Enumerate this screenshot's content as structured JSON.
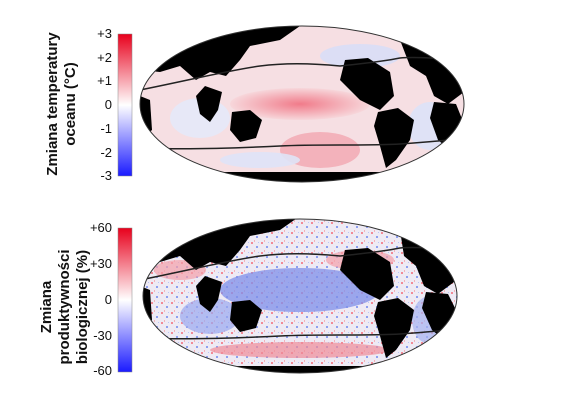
{
  "panels": [
    {
      "label_lines": [
        "Zmiana temperatury",
        "oceanu (°C)"
      ],
      "ticks": [
        "+3",
        "+2",
        "+1",
        "0",
        "-1",
        "-2",
        "-3"
      ],
      "colorbar": {
        "min": -3,
        "max": 3,
        "low_color": "#1a1aff",
        "mid_color": "#ffffff",
        "high_color": "#e8001c"
      }
    },
    {
      "label_lines": [
        "Zmiana",
        "produktywności",
        "biologicznej (%)"
      ],
      "ticks": [
        "+60",
        "+30",
        "0",
        "-30",
        "-60"
      ],
      "colorbar": {
        "min": -60,
        "max": 60,
        "low_color": "#1a1aff",
        "mid_color": "#ffffff",
        "high_color": "#e8001c"
      }
    }
  ],
  "colors": {
    "land": "#000000",
    "contour": "#222222"
  }
}
